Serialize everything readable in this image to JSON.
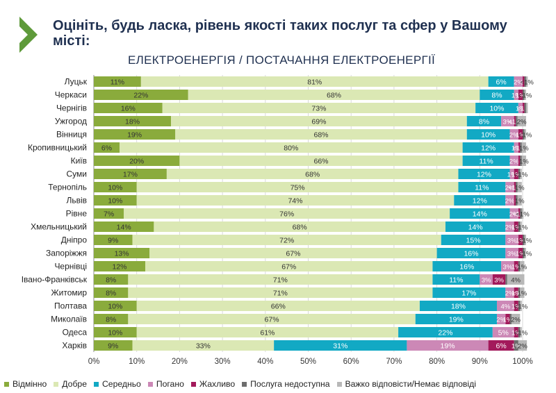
{
  "header": {
    "title": "Оцініть, будь ласка, рівень якості таких послуг та сфер у Вашому місті:",
    "subtitle": "ЕЛЕКТРОЕНЕРГІЯ / ПОСТАЧАННЯ ЕЛЕКТРОЕНЕРГІЇ"
  },
  "colors": {
    "accent_arrow": "#5e9a3a",
    "grid": "#d9d9d9"
  },
  "chart_data": {
    "type": "bar",
    "orientation": "horizontal-stacked-100",
    "xlim": [
      0,
      100
    ],
    "x_ticks": [
      "0%",
      "10%",
      "20%",
      "30%",
      "40%",
      "50%",
      "60%",
      "70%",
      "80%",
      "90%",
      "100%"
    ],
    "categories": [
      "Луцьк",
      "Черкаси",
      "Чернігів",
      "Ужгород",
      "Вінниця",
      "Кропивницький",
      "Київ",
      "Суми",
      "Тернопіль",
      "Львів",
      "Рівне",
      "Хмельницький",
      "Дніпро",
      "Запоріжжя",
      "Чернівці",
      "Івано-Франківськ",
      "Житомир",
      "Полтава",
      "Миколаїв",
      "Одеса",
      "Харків"
    ],
    "series": [
      {
        "name": "Відмінно",
        "color": "#8aab3c",
        "values": [
          11,
          22,
          16,
          18,
          19,
          6,
          20,
          17,
          10,
          10,
          7,
          14,
          9,
          13,
          12,
          8,
          8,
          10,
          8,
          10,
          9
        ],
        "labels": [
          "11%",
          "22%",
          "16%",
          "18%",
          "19%",
          "6%",
          "20%",
          "17%",
          "10%",
          "10%",
          "7%",
          "14%",
          "9%",
          "13%",
          "12%",
          "8%",
          "8%",
          "10%",
          "8%",
          "10%",
          "9%"
        ]
      },
      {
        "name": "Добре",
        "color": "#dbe8b4",
        "values": [
          81,
          68,
          73,
          69,
          68,
          80,
          66,
          68,
          75,
          74,
          76,
          68,
          72,
          67,
          67,
          71,
          71,
          66,
          67,
          61,
          33
        ],
        "labels": [
          "81%",
          "68%",
          "73%",
          "69%",
          "68%",
          "80%",
          "66%",
          "68%",
          "75%",
          "74%",
          "76%",
          "68%",
          "72%",
          "67%",
          "67%",
          "71%",
          "71%",
          "66%",
          "67%",
          "61%",
          "33%"
        ]
      },
      {
        "name": "Середньо",
        "color": "#12a9c4",
        "values": [
          6,
          8,
          10,
          8,
          10,
          12,
          11,
          12,
          11,
          12,
          14,
          14,
          15,
          16,
          16,
          11,
          17,
          18,
          19,
          22,
          31
        ],
        "labels": [
          "6%",
          "8%",
          "10%",
          "8%",
          "10%",
          "12%",
          "11%",
          "12%",
          "11%",
          "12%",
          "14%",
          "14%",
          "15%",
          "16%",
          "16%",
          "11%",
          "17%",
          "18%",
          "19%",
          "22%",
          "31%"
        ]
      },
      {
        "name": "Погано",
        "color": "#cc88b6",
        "values": [
          2,
          1,
          1,
          3,
          2,
          1,
          2,
          1,
          2,
          2,
          2,
          2,
          3,
          3,
          3,
          3,
          2,
          4,
          2,
          5,
          19
        ],
        "labels": [
          "2%",
          "1%",
          "1%",
          "3%",
          "2%",
          "1%",
          "2%",
          "1%",
          "2%",
          "2%",
          "2%",
          "2%",
          "3%",
          "3%",
          "3%",
          "3%",
          "2%",
          "4%",
          "2%",
          "5%",
          "19%"
        ]
      },
      {
        "name": "Жахливо",
        "color": "#a3195b",
        "values": [
          0.4,
          1,
          0.4,
          0.4,
          1,
          0.4,
          0.4,
          1,
          0.4,
          0.4,
          0.4,
          1,
          1,
          1,
          1,
          3,
          1,
          1,
          1,
          1,
          6
        ],
        "labels": [
          "",
          "1%",
          "<1%",
          "<1%",
          "1%",
          "<1%",
          "",
          "1%",
          "<1%",
          "",
          "<1%",
          "1%",
          "1%",
          "1%",
          "1%",
          "3%",
          "1%",
          "1%",
          "1%",
          "1%",
          "6%"
        ]
      },
      {
        "name": "Послуга недоступна",
        "color": "#6d6d6d",
        "values": [
          0.4,
          0.4,
          0.4,
          0.4,
          0.4,
          0.4,
          0.4,
          0.4,
          0.4,
          0.4,
          0.4,
          0.4,
          0.4,
          0.4,
          0.4,
          0.4,
          0.4,
          0.4,
          0.4,
          0.4,
          1
        ],
        "labels": [
          "",
          "",
          "",
          "",
          "",
          "",
          "",
          "",
          "",
          "",
          "",
          "",
          "",
          "",
          "",
          "",
          "<1%",
          "",
          "",
          "",
          "1%"
        ]
      },
      {
        "name": "Важко відповісти/Немає відповіді",
        "color": "#b8b8b8",
        "values": [
          0.4,
          0.4,
          0.4,
          2,
          0.4,
          1,
          1,
          0.4,
          1,
          1,
          0.4,
          0.4,
          0.4,
          0.4,
          1,
          4,
          1,
          0.4,
          2,
          0.4,
          2
        ],
        "labels": [
          "<1%",
          "<1%",
          "",
          "2%",
          "<1%",
          "1%",
          "1%",
          "<1%",
          "1%",
          "1%",
          "<1%",
          "<1%",
          "<1%",
          "<1%",
          "1%",
          "4%",
          "1%",
          "<1%",
          "2%",
          "<1%",
          "2%"
        ]
      }
    ]
  }
}
